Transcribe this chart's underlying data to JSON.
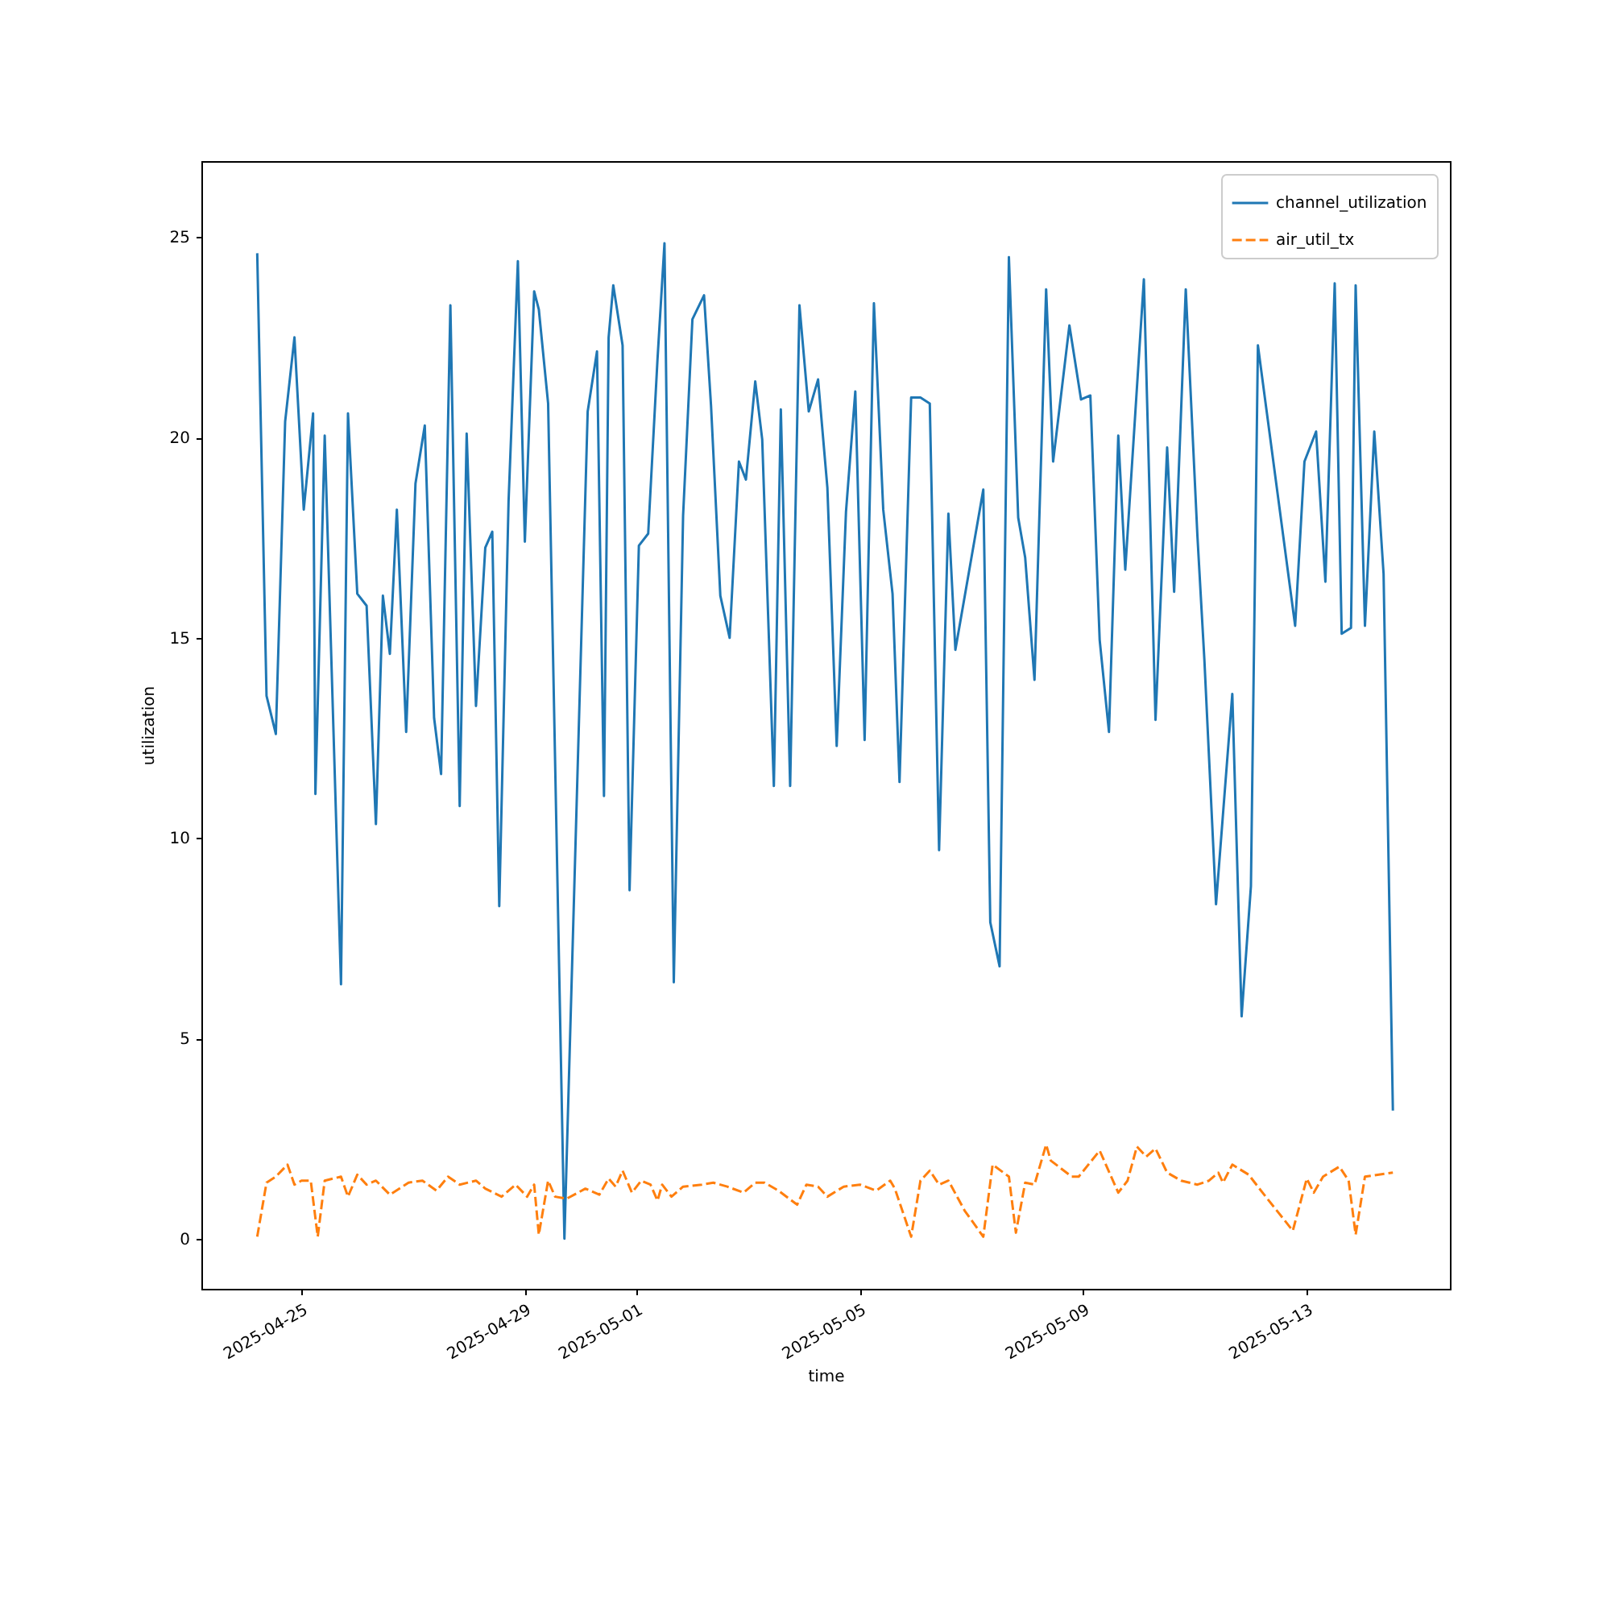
{
  "chart_data": {
    "type": "line",
    "xlabel": "time",
    "ylabel": "utilization",
    "legend": "top right",
    "grid": false,
    "xlim": [
      "2025-04-23T05:00",
      "2025-05-15T13:30"
    ],
    "ylim": [
      -1.25,
      26.9
    ],
    "xticks": [
      "2025-04-25",
      "2025-04-29",
      "2025-05-01",
      "2025-05-05",
      "2025-05-09",
      "2025-05-13"
    ],
    "yticks": [
      0,
      5,
      10,
      15,
      20,
      25
    ],
    "series": [
      {
        "name": "channel_utilization",
        "color": "#1f77b4",
        "line_style": "solid",
        "x": [
          "2025-04-24T05:00",
          "2025-04-24T09:00",
          "2025-04-24T13:00",
          "2025-04-24T17:00",
          "2025-04-24T21:00",
          "2025-04-25T01:00",
          "2025-04-25T05:00",
          "2025-04-25T06:00",
          "2025-04-25T10:00",
          "2025-04-25T17:00",
          "2025-04-25T20:00",
          "2025-04-26T00:00",
          "2025-04-26T04:00",
          "2025-04-26T08:00",
          "2025-04-26T11:00",
          "2025-04-26T14:00",
          "2025-04-26T17:00",
          "2025-04-26T21:00",
          "2025-04-27T01:00",
          "2025-04-27T05:00",
          "2025-04-27T09:00",
          "2025-04-27T12:00",
          "2025-04-27T16:00",
          "2025-04-27T20:00",
          "2025-04-27T23:00",
          "2025-04-28T03:00",
          "2025-04-28T07:00",
          "2025-04-28T10:00",
          "2025-04-28T13:00",
          "2025-04-28T17:00",
          "2025-04-28T21:00",
          "2025-04-29T00:00",
          "2025-04-29T04:00",
          "2025-04-29T06:00",
          "2025-04-29T10:00",
          "2025-04-29T17:00",
          "2025-04-30T03:00",
          "2025-04-30T07:00",
          "2025-04-30T10:00",
          "2025-04-30T12:00",
          "2025-04-30T14:00",
          "2025-04-30T18:00",
          "2025-04-30T21:00",
          "2025-05-01T01:00",
          "2025-05-01T05:00",
          "2025-05-01T09:00",
          "2025-05-01T12:00",
          "2025-05-01T16:00",
          "2025-05-01T20:00",
          "2025-05-02T00:00",
          "2025-05-02T05:00",
          "2025-05-02T08:00",
          "2025-05-02T12:00",
          "2025-05-02T16:00",
          "2025-05-02T20:00",
          "2025-05-02T23:00",
          "2025-05-03T03:00",
          "2025-05-03T06:00",
          "2025-05-03T11:00",
          "2025-05-03T14:00",
          "2025-05-03T18:00",
          "2025-05-03T22:00",
          "2025-05-04T02:00",
          "2025-05-04T06:00",
          "2025-05-04T10:00",
          "2025-05-04T14:00",
          "2025-05-04T18:00",
          "2025-05-04T22:00",
          "2025-05-05T02:00",
          "2025-05-05T06:00",
          "2025-05-05T10:00",
          "2025-05-05T14:00",
          "2025-05-05T17:00",
          "2025-05-05T22:00",
          "2025-05-06T02:00",
          "2025-05-06T06:00",
          "2025-05-06T10:00",
          "2025-05-06T14:00",
          "2025-05-06T17:00",
          "2025-05-07T05:00",
          "2025-05-07T08:00",
          "2025-05-07T12:00",
          "2025-05-07T16:00",
          "2025-05-07T20:00",
          "2025-05-07T23:00",
          "2025-05-08T03:00",
          "2025-05-08T08:00",
          "2025-05-08T11:00",
          "2025-05-08T18:00",
          "2025-05-08T23:00",
          "2025-05-09T03:00",
          "2025-05-09T07:00",
          "2025-05-09T11:00",
          "2025-05-09T15:00",
          "2025-05-09T18:00",
          "2025-05-10T02:00",
          "2025-05-10T07:00",
          "2025-05-10T12:00",
          "2025-05-10T15:00",
          "2025-05-10T20:00",
          "2025-05-11T01:00",
          "2025-05-11T04:00",
          "2025-05-11T09:00",
          "2025-05-11T16:00",
          "2025-05-11T20:00",
          "2025-05-12T00:00",
          "2025-05-12T03:00",
          "2025-05-12T19:00",
          "2025-05-12T23:00",
          "2025-05-13T04:00",
          "2025-05-13T08:00",
          "2025-05-13T12:00",
          "2025-05-13T15:00",
          "2025-05-13T19:00",
          "2025-05-13T21:00",
          "2025-05-14T01:00",
          "2025-05-14T05:00",
          "2025-05-14T09:00",
          "2025-05-14T13:00"
        ],
        "values": [
          24.6,
          13.55,
          12.6,
          20.4,
          22.5,
          18.2,
          20.6,
          11.1,
          20.05,
          6.35,
          20.6,
          16.1,
          15.8,
          10.35,
          16.05,
          14.6,
          18.2,
          12.65,
          18.85,
          20.3,
          13.0,
          11.6,
          23.3,
          10.8,
          20.1,
          13.3,
          17.25,
          17.65,
          8.3,
          18.4,
          24.4,
          17.4,
          23.65,
          23.2,
          20.85,
          0.0,
          20.65,
          22.15,
          11.05,
          22.5,
          23.8,
          22.3,
          8.7,
          17.3,
          17.6,
          21.95,
          24.85,
          6.4,
          18.05,
          22.95,
          23.55,
          20.8,
          16.05,
          15.0,
          19.4,
          18.95,
          21.4,
          19.95,
          11.3,
          20.7,
          11.3,
          23.3,
          20.65,
          21.45,
          18.75,
          12.3,
          18.15,
          21.15,
          12.45,
          23.35,
          18.2,
          16.1,
          11.4,
          21.0,
          21.0,
          20.85,
          9.7,
          18.1,
          14.7,
          18.7,
          7.9,
          6.8,
          24.5,
          18.0,
          17.0,
          13.95,
          23.7,
          19.4,
          22.8,
          20.95,
          21.05,
          14.95,
          12.65,
          20.05,
          16.7,
          23.95,
          12.95,
          19.75,
          16.15,
          23.7,
          17.55,
          14.45,
          8.35,
          13.6,
          5.55,
          8.8,
          22.3,
          15.3,
          19.4,
          20.15,
          16.4,
          23.85,
          15.1,
          15.25,
          23.8,
          15.3,
          20.15,
          16.6,
          3.2
        ]
      },
      {
        "name": "air_util_tx",
        "color": "#ff7f0e",
        "line_style": "dashed",
        "x": [
          "2025-04-24T05:00",
          "2025-04-24T09:00",
          "2025-04-24T13:00",
          "2025-04-24T18:00",
          "2025-04-24T21:00",
          "2025-04-25T00:00",
          "2025-04-25T04:00",
          "2025-04-25T07:00",
          "2025-04-25T10:00",
          "2025-04-25T17:00",
          "2025-04-25T20:00",
          "2025-04-26T00:00",
          "2025-04-26T04:00",
          "2025-04-26T08:00",
          "2025-04-26T14:00",
          "2025-04-26T22:00",
          "2025-04-27T04:00",
          "2025-04-27T10:00",
          "2025-04-27T15:00",
          "2025-04-27T20:00",
          "2025-04-28T03:00",
          "2025-04-28T07:00",
          "2025-04-28T14:00",
          "2025-04-28T20:00",
          "2025-04-29T01:00",
          "2025-04-29T04:00",
          "2025-04-29T06:00",
          "2025-04-29T10:00",
          "2025-04-29T13:00",
          "2025-04-29T18:00",
          "2025-04-30T02:00",
          "2025-04-30T08:00",
          "2025-04-30T12:00",
          "2025-04-30T15:00",
          "2025-04-30T18:00",
          "2025-04-30T22:00",
          "2025-05-01T02:00",
          "2025-05-01T06:00",
          "2025-05-01T09:00",
          "2025-05-01T11:00",
          "2025-05-01T15:00",
          "2025-05-01T20:00",
          "2025-05-02T04:00",
          "2025-05-02T09:00",
          "2025-05-02T15:00",
          "2025-05-02T22:00",
          "2025-05-03T03:00",
          "2025-05-03T07:00",
          "2025-05-03T13:00",
          "2025-05-03T21:00",
          "2025-05-04T01:00",
          "2025-05-04T06:00",
          "2025-05-04T10:00",
          "2025-05-04T17:00",
          "2025-05-05T00:00",
          "2025-05-05T07:00",
          "2025-05-05T13:00",
          "2025-05-05T15:00",
          "2025-05-05T22:00",
          "2025-05-06T02:00",
          "2025-05-06T06:00",
          "2025-05-06T10:00",
          "2025-05-06T14:00",
          "2025-05-06T21:00",
          "2025-05-07T05:00",
          "2025-05-07T09:00",
          "2025-05-07T16:00",
          "2025-05-07T19:00",
          "2025-05-07T23:00",
          "2025-05-08T03:00",
          "2025-05-08T08:00",
          "2025-05-08T10:00",
          "2025-05-08T19:00",
          "2025-05-08T22:00",
          "2025-05-09T07:00",
          "2025-05-09T15:00",
          "2025-05-09T19:00",
          "2025-05-09T23:00",
          "2025-05-10T03:00",
          "2025-05-10T07:00",
          "2025-05-10T12:00",
          "2025-05-10T18:00",
          "2025-05-11T01:00",
          "2025-05-11T06:00",
          "2025-05-11T10:00",
          "2025-05-11T12:00",
          "2025-05-11T16:00",
          "2025-05-11T23:00",
          "2025-05-12T05:00",
          "2025-05-12T18:00",
          "2025-05-13T00:00",
          "2025-05-13T03:00",
          "2025-05-13T07:00",
          "2025-05-13T14:00",
          "2025-05-13T18:00",
          "2025-05-13T21:00",
          "2025-05-14T01:00",
          "2025-05-14T13:00"
        ],
        "values": [
          0.05,
          1.4,
          1.55,
          1.85,
          1.35,
          1.45,
          1.45,
          0.05,
          1.45,
          1.55,
          1.05,
          1.6,
          1.35,
          1.45,
          1.1,
          1.4,
          1.45,
          1.2,
          1.55,
          1.35,
          1.45,
          1.25,
          1.05,
          1.35,
          1.05,
          1.35,
          0.1,
          1.45,
          1.05,
          1.0,
          1.25,
          1.1,
          1.5,
          1.3,
          1.7,
          1.15,
          1.45,
          1.35,
          0.95,
          1.35,
          1.05,
          1.3,
          1.35,
          1.4,
          1.3,
          1.15,
          1.4,
          1.4,
          1.2,
          0.85,
          1.35,
          1.3,
          1.05,
          1.3,
          1.35,
          1.2,
          1.45,
          1.25,
          0.05,
          1.45,
          1.7,
          1.35,
          1.45,
          0.7,
          0.05,
          1.85,
          1.55,
          0.15,
          1.4,
          1.35,
          2.35,
          1.95,
          1.55,
          1.55,
          2.2,
          1.15,
          1.45,
          2.3,
          2.05,
          2.25,
          1.65,
          1.45,
          1.35,
          1.45,
          1.65,
          1.4,
          1.85,
          1.6,
          1.15,
          0.2,
          1.5,
          1.15,
          1.55,
          1.8,
          1.45,
          0.1,
          1.55,
          1.65
        ]
      }
    ]
  }
}
